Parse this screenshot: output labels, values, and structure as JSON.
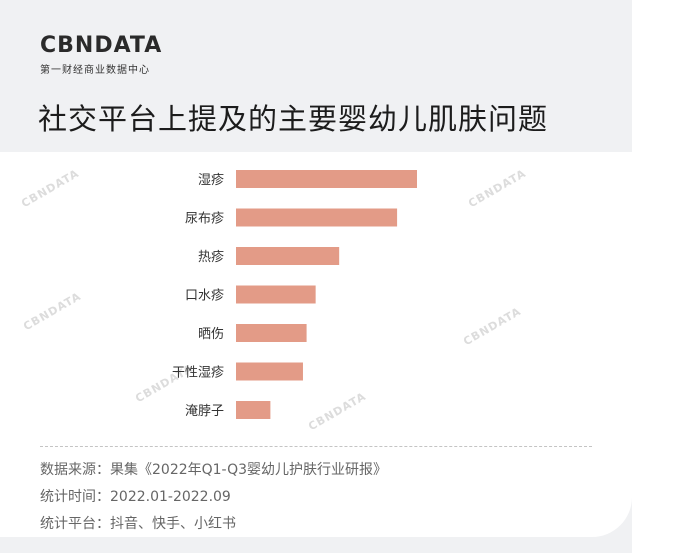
{
  "brand": {
    "name": "CBNDATA",
    "subtitle": "第一财经商业数据中心"
  },
  "watermark_text": "CBNDATA",
  "chart_data": {
    "type": "bar",
    "orientation": "horizontal",
    "title": "社交平台上提及的主要婴幼儿肌肤问题",
    "categories": [
      "湿疹",
      "尿布疹",
      "热疹",
      "口水疹",
      "晒伤",
      "干性湿疹",
      "淹脖子"
    ],
    "values": [
      100,
      89,
      57,
      44,
      39,
      37,
      19
    ],
    "xlim": [
      0,
      100
    ],
    "bar_color": "#e39b87",
    "grid": false,
    "legend": "none"
  },
  "footer": {
    "source": "数据来源：果集《2022年Q1-Q3婴幼儿护肤行业研报》",
    "period": "统计时间：2022.01-2022.09",
    "platforms": "统计平台：抖音、快手、小红书"
  }
}
